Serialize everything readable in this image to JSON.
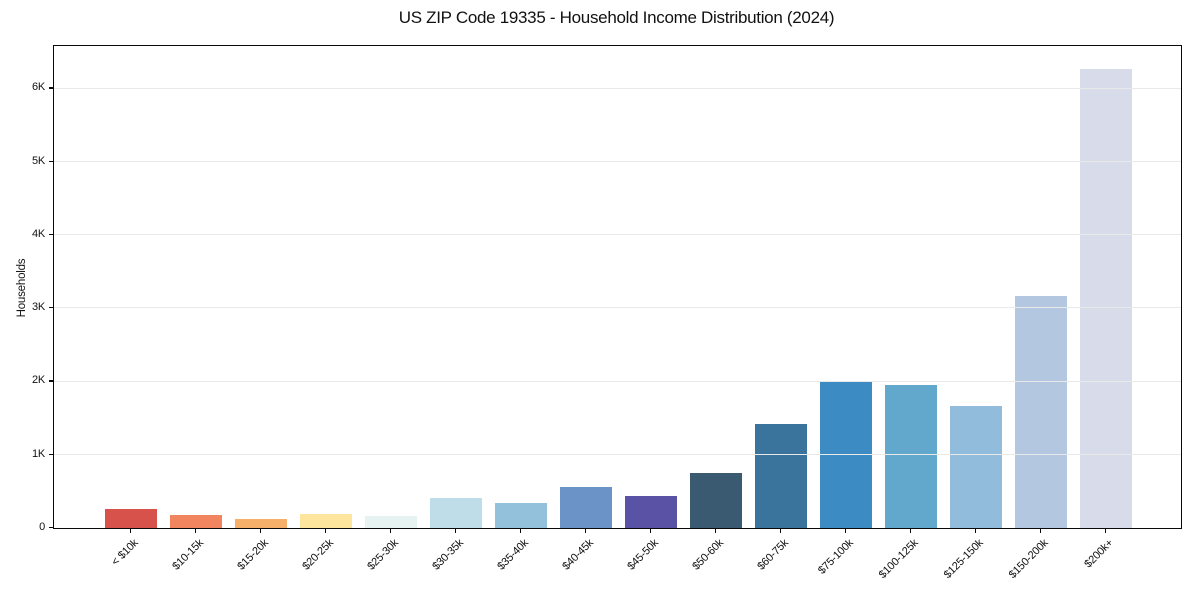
{
  "page": {
    "background": "#ffffff"
  },
  "chart_data": {
    "type": "bar",
    "title": "US ZIP Code 19335 - Household Income Distribution (2024)",
    "xlabel": "",
    "ylabel": "Households",
    "categories": [
      "< $10k",
      "$10-15k",
      "$15-20k",
      "$20-25k",
      "$25-30k",
      "$30-35k",
      "$35-40k",
      "$40-45k",
      "$45-50k",
      "$50-60k",
      "$60-75k",
      "$75-100k",
      "$100-125k",
      "$125-150k",
      "$150-200k",
      "$200k+"
    ],
    "values": [
      260,
      180,
      120,
      195,
      160,
      410,
      340,
      560,
      435,
      750,
      1420,
      2010,
      1955,
      1670,
      3170,
      6260
    ],
    "bar_colors": [
      "#d6524b",
      "#f0855f",
      "#f6b06a",
      "#fde59e",
      "#e6f3f0",
      "#bedde8",
      "#93c0da",
      "#6b93c7",
      "#5a53a5",
      "#3a5a72",
      "#3a749c",
      "#3d8bc3",
      "#62a7cc",
      "#92bcdb",
      "#b3c7e1",
      "#d8dbe9"
    ],
    "ylim": [
      0,
      6580
    ],
    "yticks": [
      {
        "value": 0,
        "label": "0"
      },
      {
        "value": 1000,
        "label": "1K"
      },
      {
        "value": 2000,
        "label": "2K"
      },
      {
        "value": 3000,
        "label": "3K"
      },
      {
        "value": 4000,
        "label": "4K"
      },
      {
        "value": 5000,
        "label": "5K"
      },
      {
        "value": 6000,
        "label": "6K"
      }
    ],
    "grid": "horizontal",
    "grid_color": "#e9e9e9",
    "axis_color": "#0a0a0a",
    "x_tick_rotation": -45,
    "legend": "none"
  }
}
